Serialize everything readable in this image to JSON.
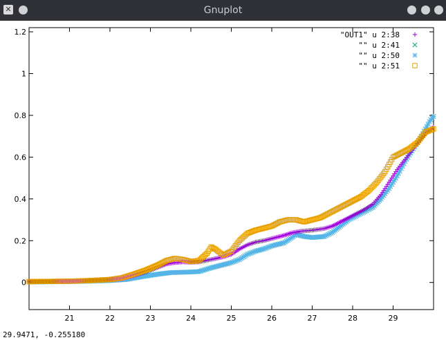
{
  "window": {
    "title": "Gnuplot",
    "app_icon": "gnuplot-app-icon"
  },
  "status": {
    "readout": "29.9471, -0.255180"
  },
  "chart_data": {
    "type": "scatter",
    "xlim": [
      20.0,
      30.0
    ],
    "ylim": [
      -0.13,
      1.22
    ],
    "x_ticks": [
      21,
      22,
      23,
      24,
      25,
      26,
      27,
      28,
      29
    ],
    "y_ticks": [
      0,
      0.2,
      0.4,
      0.6,
      0.8,
      1,
      1.2
    ],
    "y_tick_labels": [
      "0",
      "0.2",
      "0.4",
      "0.6",
      "0.8",
      "1",
      "1.2"
    ],
    "grid": false,
    "legend_position": "top-right",
    "series": [
      {
        "name": "\"OUT1\" u 2:38",
        "marker": "plus",
        "color": "#9400d3",
        "points": [
          [
            20.0,
            0.003
          ],
          [
            20.5,
            0.004
          ],
          [
            21.0,
            0.005
          ],
          [
            21.5,
            0.008
          ],
          [
            22.0,
            0.012
          ],
          [
            22.3,
            0.018
          ],
          [
            22.6,
            0.033
          ],
          [
            22.9,
            0.05
          ],
          [
            23.2,
            0.073
          ],
          [
            23.4,
            0.088
          ],
          [
            23.6,
            0.095
          ],
          [
            23.8,
            0.098
          ],
          [
            24.0,
            0.096
          ],
          [
            24.2,
            0.098
          ],
          [
            24.5,
            0.11
          ],
          [
            24.8,
            0.122
          ],
          [
            25.0,
            0.135
          ],
          [
            25.2,
            0.16
          ],
          [
            25.4,
            0.18
          ],
          [
            25.6,
            0.193
          ],
          [
            25.8,
            0.2
          ],
          [
            26.0,
            0.21
          ],
          [
            26.3,
            0.225
          ],
          [
            26.5,
            0.238
          ],
          [
            26.7,
            0.245
          ],
          [
            27.0,
            0.25
          ],
          [
            27.3,
            0.258
          ],
          [
            27.5,
            0.27
          ],
          [
            27.7,
            0.29
          ],
          [
            27.9,
            0.31
          ],
          [
            28.1,
            0.33
          ],
          [
            28.3,
            0.35
          ],
          [
            28.5,
            0.375
          ],
          [
            28.7,
            0.42
          ],
          [
            28.9,
            0.48
          ],
          [
            29.1,
            0.54
          ],
          [
            29.3,
            0.59
          ],
          [
            29.5,
            0.64
          ],
          [
            29.7,
            0.69
          ],
          [
            29.9,
            0.73
          ],
          [
            30.0,
            0.745
          ]
        ]
      },
      {
        "name": "\"\" u 2:41",
        "marker": "cross",
        "color": "#009e73",
        "points": [
          [
            20.0,
            0.002
          ],
          [
            20.5,
            0.003
          ],
          [
            21.0,
            0.004
          ],
          [
            21.5,
            0.006
          ],
          [
            22.0,
            0.009
          ],
          [
            22.4,
            0.014
          ],
          [
            22.8,
            0.028
          ],
          [
            23.2,
            0.04
          ],
          [
            23.5,
            0.047
          ],
          [
            24.0,
            0.05
          ],
          [
            24.2,
            0.052
          ],
          [
            24.5,
            0.07
          ],
          [
            24.8,
            0.085
          ],
          [
            25.0,
            0.095
          ],
          [
            25.2,
            0.11
          ],
          [
            25.4,
            0.135
          ],
          [
            25.6,
            0.15
          ],
          [
            25.8,
            0.16
          ],
          [
            26.0,
            0.175
          ],
          [
            26.3,
            0.19
          ],
          [
            26.5,
            0.215
          ],
          [
            26.6,
            0.23
          ],
          [
            26.8,
            0.22
          ],
          [
            27.0,
            0.215
          ],
          [
            27.3,
            0.22
          ],
          [
            27.5,
            0.24
          ],
          [
            27.7,
            0.27
          ],
          [
            27.9,
            0.3
          ],
          [
            28.1,
            0.32
          ],
          [
            28.3,
            0.34
          ],
          [
            28.5,
            0.36
          ],
          [
            28.7,
            0.4
          ],
          [
            28.9,
            0.45
          ],
          [
            29.1,
            0.51
          ],
          [
            29.3,
            0.58
          ],
          [
            29.5,
            0.64
          ],
          [
            29.7,
            0.7
          ],
          [
            29.9,
            0.77
          ],
          [
            30.0,
            0.795
          ]
        ]
      },
      {
        "name": "\"\" u 2:50",
        "marker": "star",
        "color": "#56b4e9",
        "points": [
          [
            20.0,
            0.002
          ],
          [
            20.5,
            0.003
          ],
          [
            21.0,
            0.004
          ],
          [
            21.5,
            0.006
          ],
          [
            22.0,
            0.009
          ],
          [
            22.4,
            0.014
          ],
          [
            22.8,
            0.028
          ],
          [
            23.2,
            0.04
          ],
          [
            23.5,
            0.047
          ],
          [
            24.0,
            0.05
          ],
          [
            24.2,
            0.052
          ],
          [
            24.5,
            0.07
          ],
          [
            24.8,
            0.085
          ],
          [
            25.0,
            0.095
          ],
          [
            25.2,
            0.11
          ],
          [
            25.4,
            0.135
          ],
          [
            25.6,
            0.15
          ],
          [
            25.8,
            0.16
          ],
          [
            26.0,
            0.175
          ],
          [
            26.3,
            0.19
          ],
          [
            26.5,
            0.215
          ],
          [
            26.6,
            0.23
          ],
          [
            26.8,
            0.22
          ],
          [
            27.0,
            0.215
          ],
          [
            27.3,
            0.22
          ],
          [
            27.5,
            0.24
          ],
          [
            27.7,
            0.27
          ],
          [
            27.9,
            0.3
          ],
          [
            28.1,
            0.32
          ],
          [
            28.3,
            0.34
          ],
          [
            28.5,
            0.36
          ],
          [
            28.7,
            0.4
          ],
          [
            28.9,
            0.45
          ],
          [
            29.1,
            0.51
          ],
          [
            29.3,
            0.58
          ],
          [
            29.5,
            0.64
          ],
          [
            29.7,
            0.7
          ],
          [
            29.9,
            0.77
          ],
          [
            30.0,
            0.795
          ]
        ]
      },
      {
        "name": "\"\" u 2:51",
        "marker": "square",
        "color": "#e69f00",
        "points": [
          [
            20.0,
            0.004
          ],
          [
            20.5,
            0.005
          ],
          [
            21.0,
            0.006
          ],
          [
            21.5,
            0.009
          ],
          [
            22.0,
            0.014
          ],
          [
            22.3,
            0.022
          ],
          [
            22.6,
            0.04
          ],
          [
            22.9,
            0.06
          ],
          [
            23.2,
            0.085
          ],
          [
            23.4,
            0.105
          ],
          [
            23.6,
            0.115
          ],
          [
            23.8,
            0.11
          ],
          [
            24.0,
            0.1
          ],
          [
            24.2,
            0.105
          ],
          [
            24.4,
            0.14
          ],
          [
            24.5,
            0.17
          ],
          [
            24.6,
            0.16
          ],
          [
            24.8,
            0.13
          ],
          [
            25.0,
            0.15
          ],
          [
            25.2,
            0.2
          ],
          [
            25.4,
            0.235
          ],
          [
            25.6,
            0.25
          ],
          [
            25.8,
            0.26
          ],
          [
            26.0,
            0.27
          ],
          [
            26.2,
            0.29
          ],
          [
            26.4,
            0.3
          ],
          [
            26.6,
            0.3
          ],
          [
            26.8,
            0.29
          ],
          [
            27.0,
            0.3
          ],
          [
            27.2,
            0.31
          ],
          [
            27.4,
            0.33
          ],
          [
            27.6,
            0.35
          ],
          [
            27.8,
            0.37
          ],
          [
            28.0,
            0.39
          ],
          [
            28.2,
            0.41
          ],
          [
            28.4,
            0.44
          ],
          [
            28.6,
            0.48
          ],
          [
            28.8,
            0.53
          ],
          [
            29.0,
            0.6
          ],
          [
            29.2,
            0.62
          ],
          [
            29.4,
            0.64
          ],
          [
            29.6,
            0.67
          ],
          [
            29.8,
            0.72
          ],
          [
            30.0,
            0.735
          ]
        ]
      }
    ]
  }
}
